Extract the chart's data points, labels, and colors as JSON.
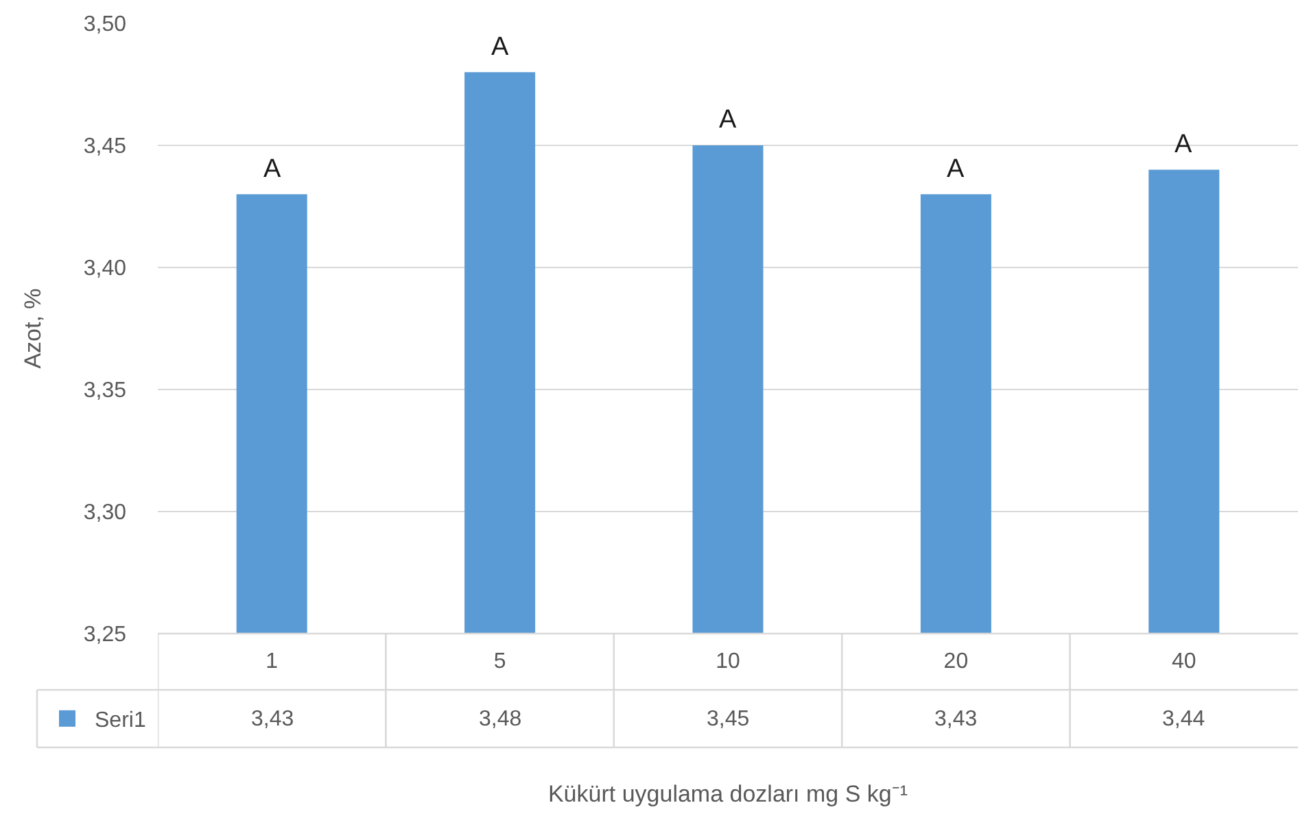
{
  "chart_data": {
    "type": "bar",
    "xlabel": "Kükürt uygulama dozları mg S kg⁻¹",
    "ylabel": "Azot, %",
    "categories": [
      "1",
      "5",
      "10",
      "20",
      "40"
    ],
    "series": [
      {
        "name": "Seri1",
        "color": "#5b9bd5",
        "values": [
          3.43,
          3.48,
          3.45,
          3.43,
          3.44
        ]
      }
    ],
    "value_labels": [
      "3,43",
      "3,48",
      "3,45",
      "3,43",
      "3,44"
    ],
    "ylim": [
      3.25,
      3.5
    ],
    "yticks": [
      {
        "value": 3.25,
        "label": "3,25"
      },
      {
        "value": 3.3,
        "label": "3,30"
      },
      {
        "value": 3.35,
        "label": "3,35"
      },
      {
        "value": 3.4,
        "label": "3,40"
      },
      {
        "value": 3.45,
        "label": "3,45"
      },
      {
        "value": 3.5,
        "label": "3,50"
      }
    ],
    "annotations": [
      {
        "text": "A",
        "x": "1",
        "y": 3.43
      },
      {
        "text": "A",
        "x": "5",
        "y": 3.48
      },
      {
        "text": "A",
        "x": "10",
        "y": 3.45
      },
      {
        "text": "A",
        "x": "20",
        "y": 3.43
      },
      {
        "text": "A",
        "x": "40",
        "y": 3.44
      }
    ],
    "grid": "y",
    "legend": "bottom left"
  }
}
